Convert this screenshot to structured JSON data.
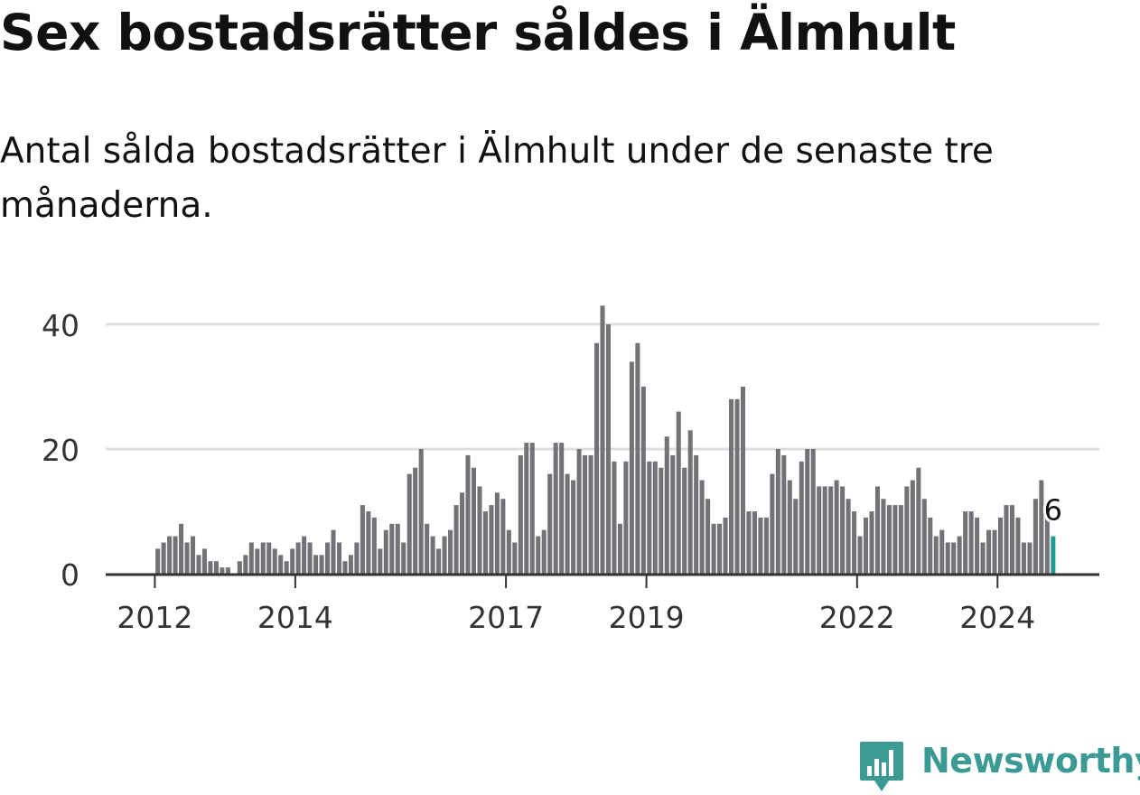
{
  "title": "Sex bostadsrätter såldes i Älmhult",
  "subtitle": "Antal sålda bostadsrätter i Älmhult under de senaste tre månaderna.",
  "brand": {
    "name": "Newsworthy",
    "color": "#3c9a94"
  },
  "colors": {
    "bar": "#737277",
    "highlight": "#1e9a94",
    "grid": "#dddddd",
    "axis": "#333333"
  },
  "chart_data": {
    "type": "bar",
    "y_ticks": [
      0,
      20,
      40
    ],
    "ylim": [
      0,
      45
    ],
    "x_tick_labels": [
      {
        "label": "2012",
        "x": 2012.0
      },
      {
        "label": "2014",
        "x": 2014.0
      },
      {
        "label": "2017",
        "x": 2017.0
      },
      {
        "label": "2019",
        "x": 2019.0
      },
      {
        "label": "2022",
        "x": 2022.0
      },
      {
        "label": "2024",
        "x": 2024.0
      }
    ],
    "x_range": [
      2011.3,
      2025.45
    ],
    "start_month": "2012-01",
    "grid": true,
    "highlight_label": "6",
    "values": [
      4,
      5,
      6,
      6,
      8,
      5,
      6,
      3,
      4,
      2,
      2,
      1,
      1,
      0,
      2,
      3,
      5,
      4,
      5,
      5,
      4,
      3,
      2,
      4,
      5,
      6,
      5,
      3,
      3,
      5,
      7,
      5,
      2,
      3,
      5,
      11,
      10,
      9,
      4,
      7,
      8,
      8,
      5,
      16,
      17,
      20,
      8,
      6,
      4,
      6,
      7,
      11,
      13,
      19,
      17,
      14,
      10,
      11,
      13,
      12,
      7,
      5,
      19,
      21,
      21,
      6,
      7,
      16,
      21,
      21,
      16,
      15,
      20,
      19,
      19,
      37,
      43,
      40,
      18,
      8,
      18,
      34,
      37,
      30,
      18,
      18,
      17,
      22,
      19,
      26,
      17,
      23,
      19,
      15,
      12,
      8,
      8,
      9,
      28,
      28,
      30,
      10,
      10,
      9,
      9,
      16,
      20,
      19,
      15,
      12,
      18,
      20,
      20,
      14,
      14,
      14,
      15,
      14,
      12,
      10,
      6,
      9,
      10,
      14,
      12,
      11,
      11,
      11,
      14,
      15,
      17,
      12,
      9,
      6,
      7,
      5,
      5,
      6,
      10,
      10,
      9,
      5,
      7,
      7,
      9,
      11,
      11,
      9,
      5,
      5,
      12,
      15,
      9,
      6
    ]
  }
}
